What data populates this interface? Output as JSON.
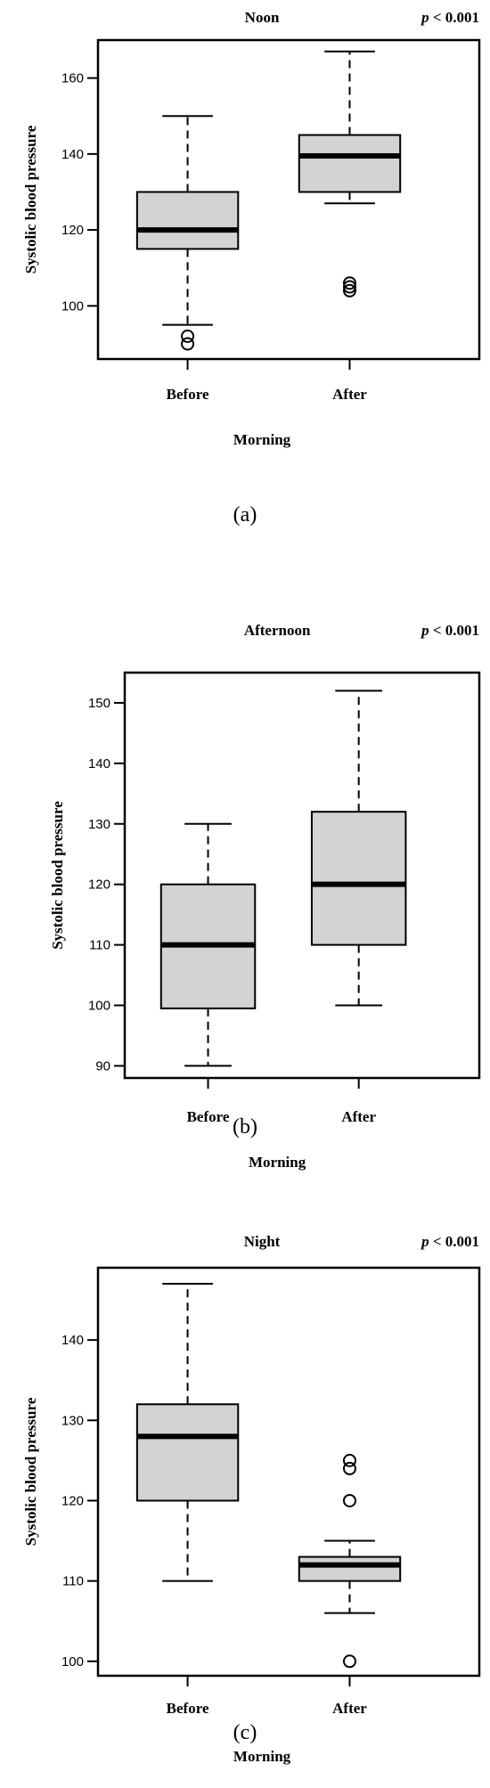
{
  "panels": [
    {
      "label": "(a)"
    },
    {
      "label": "(b)"
    },
    {
      "label": "(c)"
    }
  ],
  "chart_data": [
    {
      "type": "box",
      "title": "Noon",
      "p_value": "p < 0.001",
      "ylabel": "Systolic blood pressure",
      "xlabel": "Morning",
      "categories": [
        "Before",
        "After"
      ],
      "ylim": [
        86,
        170
      ],
      "yticks": [
        100,
        120,
        140,
        160
      ],
      "boxes": [
        {
          "name": "Before",
          "whisker_low": 95,
          "q1": 115,
          "median": 120,
          "q3": 130,
          "whisker_high": 150,
          "outliers": [
            90,
            92
          ]
        },
        {
          "name": "After",
          "whisker_low": 127,
          "q1": 130,
          "median": 139.5,
          "q3": 145,
          "whisker_high": 167,
          "outliers": [
            104,
            105,
            106
          ]
        }
      ],
      "grid": false
    },
    {
      "type": "box",
      "title": "Afternoon",
      "p_value": "p < 0.001",
      "ylabel": "Systolic blood pressure",
      "xlabel": "Morning",
      "categories": [
        "Before",
        "After"
      ],
      "ylim": [
        88,
        155
      ],
      "yticks": [
        90,
        100,
        110,
        120,
        130,
        140,
        150
      ],
      "boxes": [
        {
          "name": "Before",
          "whisker_low": 90,
          "q1": 99.5,
          "median": 110,
          "q3": 120,
          "whisker_high": 130,
          "outliers": []
        },
        {
          "name": "After",
          "whisker_low": 100,
          "q1": 110,
          "median": 120,
          "q3": 132,
          "whisker_high": 152,
          "outliers": []
        }
      ],
      "grid": false
    },
    {
      "type": "box",
      "title": "Night",
      "p_value": "p < 0.001",
      "ylabel": "Systolic blood pressure",
      "xlabel": "Morning",
      "categories": [
        "Before",
        "After"
      ],
      "ylim": [
        98.2,
        149
      ],
      "yticks": [
        100,
        110,
        120,
        130,
        140
      ],
      "boxes": [
        {
          "name": "Before",
          "whisker_low": 110,
          "q1": 120,
          "median": 128,
          "q3": 132,
          "whisker_high": 147,
          "outliers": []
        },
        {
          "name": "After",
          "whisker_low": 106,
          "q1": 110,
          "median": 112,
          "q3": 113,
          "whisker_high": 115,
          "outliers": [
            100,
            120,
            124,
            125
          ]
        }
      ],
      "grid": false
    }
  ]
}
